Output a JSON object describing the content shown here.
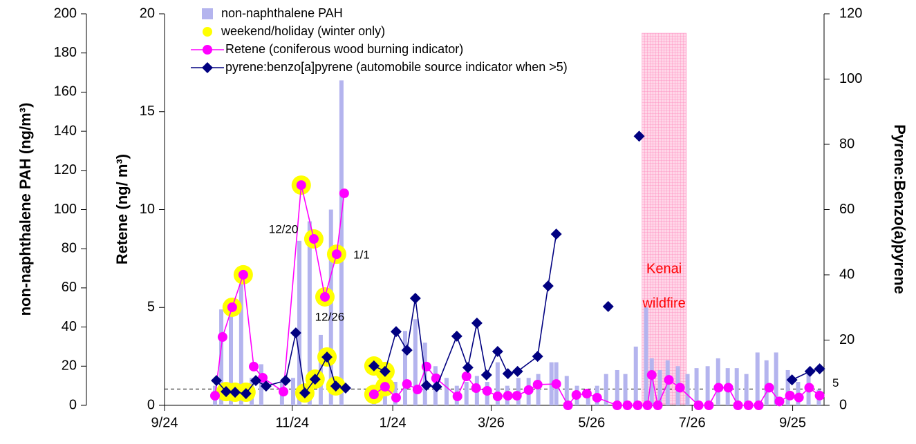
{
  "chart_data": {
    "type": "combo",
    "ylabel": "non-naphthalene PAH (ng/m³)",
    "ylim": [
      0,
      200
    ],
    "yticks": [
      0,
      20,
      40,
      60,
      80,
      100,
      120,
      140,
      160,
      180,
      200
    ],
    "y2label": "Retene (ng/ m³)",
    "y2lim": [
      0,
      20
    ],
    "y2ticks": [
      0,
      5,
      10,
      15,
      20
    ],
    "y3label": "Pyrene:Benzo(a)pyrene",
    "y3lim": [
      0,
      120
    ],
    "y3ticks": [
      0,
      20,
      40,
      60,
      80,
      100,
      120
    ],
    "xlim": [
      0,
      315
    ],
    "xticks": [
      {
        "value": 0,
        "label": "9/24"
      },
      {
        "value": 61,
        "label": "11/24"
      },
      {
        "value": 109,
        "label": "1/24"
      },
      {
        "value": 156,
        "label": "3/26"
      },
      {
        "value": 204,
        "label": "5/26"
      },
      {
        "value": 252,
        "label": "7/26"
      },
      {
        "value": 300,
        "label": "9/25"
      }
    ],
    "series": [
      {
        "name": "non-naphthalene PAH",
        "type": "bar",
        "axis": "y",
        "color": "#b4b4ee",
        "x": [
          24.1,
          27.1,
          31.7,
          36.6,
          41.6,
          46.2,
          56.1,
          61.4,
          64.4,
          69.3,
          74.6,
          79.5,
          84.5,
          100,
          105.3,
          110.2,
          114.9,
          119.8,
          124.4,
          129.4,
          134.7,
          139.6,
          144.2,
          149.2,
          154.1,
          159.1,
          163.7,
          169,
          173.9,
          178.5,
          184.8,
          187.1,
          192.1,
          197,
          202.3,
          206.6,
          210.9,
          216.2,
          220.1,
          225.1,
          230,
          232.7,
          236.6,
          240.3,
          245.2,
          249.8,
          254.1,
          259.4,
          264.4,
          269,
          273.3,
          277.9,
          283.2,
          287.5,
          292.1,
          297.7,
          302.6,
          307.6,
          312.5
        ],
        "values": [
          10,
          49,
          50,
          62,
          14,
          21,
          12,
          14,
          84,
          94,
          36,
          100,
          166,
          10,
          14,
          12,
          38,
          44,
          32,
          20,
          14,
          10,
          12,
          15,
          12,
          22,
          10,
          14,
          14,
          16,
          22,
          22,
          15,
          10,
          8,
          10,
          16,
          18,
          16,
          30,
          50,
          24,
          18,
          23,
          20,
          16,
          19,
          20,
          24,
          19,
          19,
          16,
          27,
          23,
          27,
          18,
          12,
          16,
          8
        ]
      },
      {
        "name": "weekend/holiday (winter only)",
        "type": "scatter",
        "axis": "y2",
        "color": "#ffff00",
        "x": [
          32.3,
          37.6,
          29.4,
          33.7,
          38.9,
          65.3,
          67,
          71.3,
          71.9,
          76.6,
          77.6,
          82.2,
          81.8,
          100,
          100,
          105.3,
          105.3
        ],
        "values": [
          5.01,
          6.67,
          0.7,
          0.67,
          0.67,
          11.25,
          0.63,
          8.5,
          1.34,
          5.54,
          2.47,
          7.72,
          0.99,
          2.01,
          0.56,
          1.73,
          0.95
        ]
      },
      {
        "name": "Retene (coniferous wood burning indicator)",
        "type": "line",
        "axis": "y2",
        "color": "#ff00ff",
        "marker": "circle",
        "x": [
          24.1,
          27.7,
          32.3,
          37.6,
          42.6,
          46.9,
          56.8,
          65.3,
          71.3,
          76.6,
          82.2,
          85.8,
          92,
          100,
          105.3,
          110.6,
          115.8,
          120.8,
          125.1,
          129.7,
          139.9,
          144.2,
          148.8,
          154.1,
          159.1,
          164,
          168.3,
          173.9,
          178.2,
          187.1,
          192.7,
          196.7,
          201.7,
          206.6,
          216.2,
          221.1,
          226,
          230.7,
          232.7,
          235.6,
          240.9,
          246.2,
          255.1,
          260,
          264.6,
          269.3,
          273.9,
          278.9,
          283.8,
          288.8,
          293.7,
          298.7,
          303,
          307.9,
          312.9
        ],
        "values": [
          0.49,
          3.49,
          5.01,
          6.67,
          1.98,
          1.41,
          0.7,
          11.25,
          8.5,
          5.54,
          7.72,
          10.83,
          null,
          0.56,
          0.95,
          0.39,
          1.09,
          0.81,
          1.98,
          1.38,
          0.46,
          1.48,
          0.88,
          0.74,
          0.46,
          0.49,
          0.49,
          0.78,
          1.06,
          1.09,
          0,
          0.53,
          0.6,
          0.39,
          0,
          0,
          0,
          0,
          1.55,
          0,
          1.3,
          0.9,
          0,
          0,
          0.9,
          0.9,
          0,
          0,
          0,
          0.9,
          0.2,
          0.5,
          0.4,
          0.9,
          0.5
        ]
      },
      {
        "name": "pyrene:benzo[a]pyrene (automobile source indicator when >5)",
        "type": "line",
        "axis": "y3",
        "color": "#000080",
        "marker": "diamond",
        "x": [
          24.8,
          29.4,
          33.7,
          38.9,
          43.6,
          48.5,
          57.8,
          62.7,
          67,
          71.9,
          77.6,
          81.8,
          86.5,
          93,
          100,
          105.3,
          110.6,
          115.8,
          119.8,
          125.1,
          130,
          139.6,
          144.9,
          149.2,
          153.8,
          159.1,
          164,
          168.6,
          178.2,
          183.2,
          187.1,
          200,
          211.9,
          220,
          226.7,
          260,
          299.7,
          308.3,
          312.9
        ],
        "values": [
          7.6,
          4.2,
          4.0,
          3.6,
          7.6,
          5.9,
          7.6,
          22.2,
          3.8,
          8.0,
          14.8,
          5.9,
          5.3,
          null,
          12.1,
          10.4,
          22.6,
          16.9,
          32.8,
          6.1,
          5.7,
          21.2,
          11.6,
          25.2,
          9.3,
          16.5,
          9.7,
          10.4,
          15.0,
          36.6,
          52.5,
          null,
          30.3,
          null,
          82.5,
          null,
          7.8,
          10.4,
          11.2
        ]
      }
    ],
    "reference_line": {
      "value": 5,
      "axis": "y3"
    },
    "annotations": [
      {
        "text": "12/20",
        "x": 56.8,
        "y": 8.96
      },
      {
        "text": "12/26",
        "x": 78.9,
        "y": 4.48
      },
      {
        "text": "1/1",
        "x": 94.1,
        "y": 7.65
      }
    ],
    "shade": {
      "x": [
        228,
        249.2
      ],
      "label": [
        "Kenai",
        "wildfire"
      ],
      "color": "#ff99cc"
    }
  }
}
